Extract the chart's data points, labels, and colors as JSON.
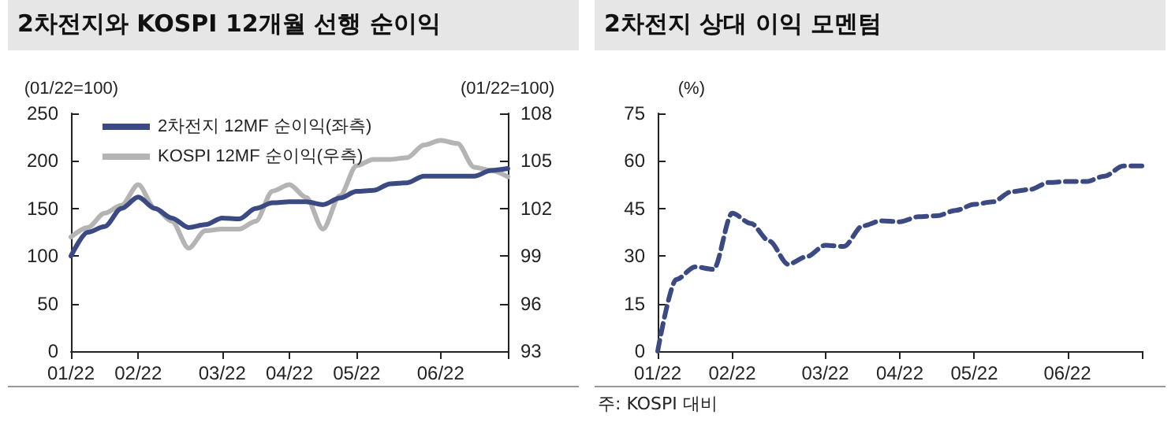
{
  "chart_data": [
    {
      "type": "line",
      "title": "2차전지와 KOSPI 12개월 선행 순이익",
      "ylabel": "(01/22=100)",
      "y2label": "(01/22=100)",
      "categories": [
        "01/22",
        null,
        null,
        null,
        "02/22",
        null,
        null,
        null,
        null,
        "03/22",
        null,
        null,
        null,
        "04/22",
        null,
        null,
        null,
        "05/22",
        null,
        null,
        null,
        null,
        "06/22",
        null,
        null,
        null,
        null
      ],
      "series": [
        {
          "name": "2차전지 12MF 순이익(좌측)",
          "color": "#3b4a82",
          "values": [
            100,
            125,
            131,
            150,
            162,
            150,
            140,
            130,
            133,
            140,
            139,
            150,
            156,
            157,
            157,
            154,
            161,
            168,
            169,
            176,
            177,
            184,
            184,
            184,
            184,
            190,
            192
          ]
        },
        {
          "name": "KOSPI 12MF 순이익(우측)",
          "color": "#b4b4b4",
          "axis": "y2",
          "values": [
            100.2,
            100.8,
            101.7,
            102.2,
            103.5,
            102.0,
            101.2,
            99.5,
            100.6,
            100.7,
            100.7,
            101.2,
            103.1,
            103.5,
            102.7,
            100.7,
            102.8,
            104.7,
            105.1,
            105.1,
            105.2,
            106.0,
            106.3,
            106.1,
            104.6,
            104.4,
            104.0
          ]
        }
      ],
      "ylim": [
        0,
        250
      ],
      "yticks": [
        0,
        50,
        100,
        150,
        200,
        250
      ],
      "y2lim": [
        93,
        108
      ],
      "y2ticks": [
        93,
        96,
        99,
        102,
        105,
        108
      ],
      "legend": "top left",
      "marker": "none",
      "line_style": "solid",
      "grid": false
    },
    {
      "type": "line",
      "title": "2차전지 상대 이익 모멘텀",
      "ylabel": "(%)",
      "annotations": [
        "주: KOSPI 대비"
      ],
      "categories": [
        "01/22",
        null,
        null,
        null,
        "02/22",
        null,
        null,
        null,
        null,
        "03/22",
        null,
        null,
        null,
        "04/22",
        null,
        null,
        null,
        "05/22",
        null,
        null,
        null,
        null,
        "06/22",
        null,
        null,
        null,
        null
      ],
      "series": [
        {
          "color": "#3b4a82",
          "values": [
            0,
            22.6,
            26.6,
            25.8,
            43.5,
            40.3,
            34.7,
            27.4,
            29.8,
            33.4,
            33,
            39.5,
            41.1,
            40.8,
            42.4,
            42.7,
            44.4,
            46.3,
            47.1,
            50.3,
            51,
            53.2,
            53.5,
            53.5,
            55.2,
            58.4,
            58.4
          ]
        }
      ],
      "ylim": [
        0,
        75
      ],
      "yticks": [
        0,
        15,
        30,
        45,
        60,
        75
      ],
      "marker": "none",
      "line_style": "dashed",
      "grid": false
    }
  ]
}
